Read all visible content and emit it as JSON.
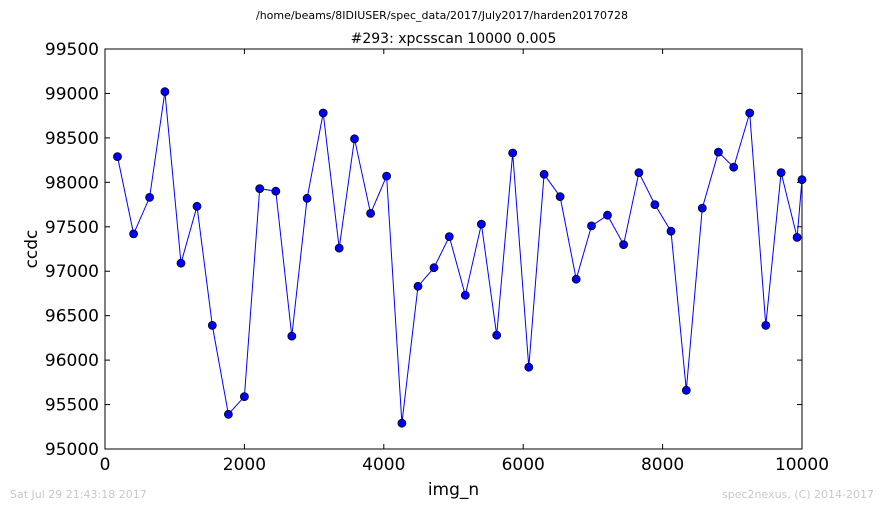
{
  "header": {
    "file_path": "/home/beams/8IDIUSER/spec_data/2017/July2017/harden20170728"
  },
  "footer": {
    "timestamp": "Sat Jul 29 21:43:18 2017",
    "credit": "spec2nexus, (C) 2014-2017"
  },
  "colors": {
    "line": "#0000ff",
    "marker_fill": "#0000ff",
    "marker_edge": "#000000",
    "axes": "#000000",
    "background": "#ffffff",
    "footer_text": "#c8c8c8"
  },
  "chart_data": {
    "type": "line",
    "title": "#293: xpcsscan 10000 0.005",
    "xlabel": "img_n",
    "ylabel": "ccdc",
    "xlim": [
      0,
      10000
    ],
    "ylim": [
      95000,
      99500
    ],
    "xticks": [
      0,
      2000,
      4000,
      6000,
      8000,
      10000
    ],
    "yticks": [
      95000,
      95500,
      96000,
      96500,
      97000,
      97500,
      98000,
      98500,
      99000,
      99500
    ],
    "grid": false,
    "legend": "none",
    "marker": "circle",
    "series": [
      {
        "x": [
          180,
          410,
          640,
          860,
          1090,
          1320,
          1540,
          1770,
          2000,
          2220,
          2450,
          2680,
          2900,
          3130,
          3360,
          3580,
          3810,
          4040,
          4260,
          4490,
          4720,
          4940,
          5170,
          5400,
          5620,
          5850,
          6080,
          6300,
          6530,
          6760,
          6980,
          7210,
          7440,
          7660,
          7890,
          8120,
          8340,
          8570,
          8800,
          9020,
          9250,
          9480,
          9700,
          9930,
          10000
        ],
        "y": [
          98290,
          97420,
          97830,
          99020,
          97090,
          97730,
          96390,
          95390,
          95590,
          97930,
          97900,
          96270,
          97820,
          98780,
          97260,
          98490,
          97650,
          98070,
          95290,
          96830,
          97040,
          97390,
          96730,
          97530,
          96280,
          98330,
          95920,
          98090,
          97840,
          96910,
          97510,
          97630,
          97300,
          98110,
          97750,
          97450,
          95660,
          97710,
          98340,
          98170,
          98780,
          96390,
          98110,
          97380,
          98030
        ]
      }
    ]
  }
}
